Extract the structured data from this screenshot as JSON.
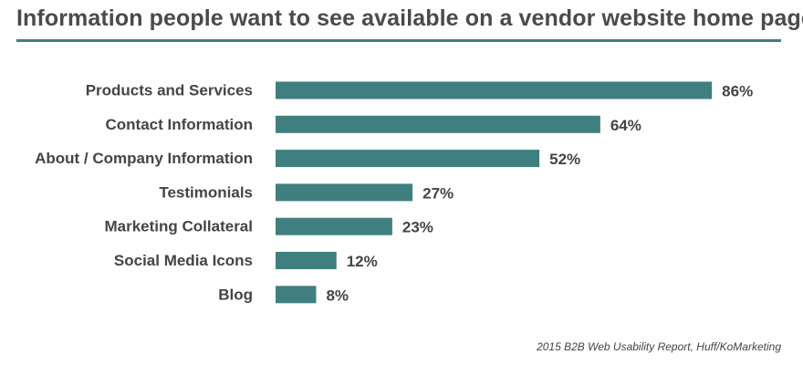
{
  "title": "Information people want to see available on a vendor website home page",
  "source": "2015 B2B Web Usability Report, Huff/KoMarketing",
  "colors": {
    "bar": "#3f7f7f",
    "title_rule": "#3f7f7f",
    "text": "#444444"
  },
  "chart_data": {
    "type": "bar",
    "orientation": "horizontal",
    "title": "Information people want to see available on a vendor website home page",
    "categories": [
      "Products and Services",
      "Contact Information",
      "About / Company Information",
      "Testimonials",
      "Marketing Collateral",
      "Social Media Icons",
      "Blog"
    ],
    "values": [
      86,
      64,
      52,
      27,
      23,
      12,
      8
    ],
    "value_labels": [
      "86%",
      "64%",
      "52%",
      "27%",
      "23%",
      "12%",
      "8%"
    ],
    "unit": "%",
    "xlim": [
      0,
      100
    ],
    "grid": false,
    "legend": "none",
    "xlabel": "",
    "ylabel": ""
  }
}
